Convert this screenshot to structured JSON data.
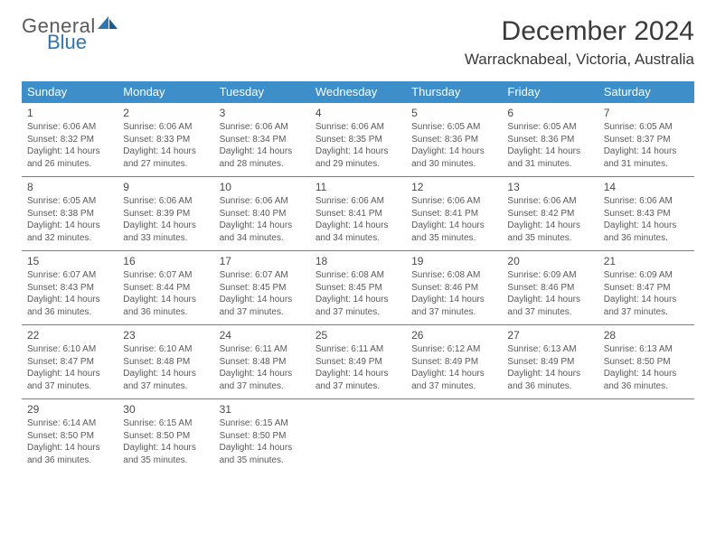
{
  "brand": {
    "general": "General",
    "blue": "Blue",
    "accent_color": "#2e75b6"
  },
  "title": {
    "month": "December 2024",
    "location": "Warracknabeal, Victoria, Australia"
  },
  "colors": {
    "header_bg": "#3d8ec9",
    "header_fg": "#ffffff",
    "cell_border": "#3d8ec9",
    "text": "#5a5a5a",
    "title_text": "#3a3a3a",
    "background": "#ffffff"
  },
  "typography": {
    "title_fontsize": 30,
    "location_fontsize": 17,
    "weekday_fontsize": 13,
    "daynum_fontsize": 12,
    "body_fontsize": 10,
    "logo_fontsize": 22
  },
  "weekdays": [
    "Sunday",
    "Monday",
    "Tuesday",
    "Wednesday",
    "Thursday",
    "Friday",
    "Saturday"
  ],
  "weeks": [
    [
      {
        "day": "1",
        "sunrise": "Sunrise: 6:06 AM",
        "sunset": "Sunset: 8:32 PM",
        "d1": "Daylight: 14 hours",
        "d2": "and 26 minutes."
      },
      {
        "day": "2",
        "sunrise": "Sunrise: 6:06 AM",
        "sunset": "Sunset: 8:33 PM",
        "d1": "Daylight: 14 hours",
        "d2": "and 27 minutes."
      },
      {
        "day": "3",
        "sunrise": "Sunrise: 6:06 AM",
        "sunset": "Sunset: 8:34 PM",
        "d1": "Daylight: 14 hours",
        "d2": "and 28 minutes."
      },
      {
        "day": "4",
        "sunrise": "Sunrise: 6:06 AM",
        "sunset": "Sunset: 8:35 PM",
        "d1": "Daylight: 14 hours",
        "d2": "and 29 minutes."
      },
      {
        "day": "5",
        "sunrise": "Sunrise: 6:05 AM",
        "sunset": "Sunset: 8:36 PM",
        "d1": "Daylight: 14 hours",
        "d2": "and 30 minutes."
      },
      {
        "day": "6",
        "sunrise": "Sunrise: 6:05 AM",
        "sunset": "Sunset: 8:36 PM",
        "d1": "Daylight: 14 hours",
        "d2": "and 31 minutes."
      },
      {
        "day": "7",
        "sunrise": "Sunrise: 6:05 AM",
        "sunset": "Sunset: 8:37 PM",
        "d1": "Daylight: 14 hours",
        "d2": "and 31 minutes."
      }
    ],
    [
      {
        "day": "8",
        "sunrise": "Sunrise: 6:05 AM",
        "sunset": "Sunset: 8:38 PM",
        "d1": "Daylight: 14 hours",
        "d2": "and 32 minutes."
      },
      {
        "day": "9",
        "sunrise": "Sunrise: 6:06 AM",
        "sunset": "Sunset: 8:39 PM",
        "d1": "Daylight: 14 hours",
        "d2": "and 33 minutes."
      },
      {
        "day": "10",
        "sunrise": "Sunrise: 6:06 AM",
        "sunset": "Sunset: 8:40 PM",
        "d1": "Daylight: 14 hours",
        "d2": "and 34 minutes."
      },
      {
        "day": "11",
        "sunrise": "Sunrise: 6:06 AM",
        "sunset": "Sunset: 8:41 PM",
        "d1": "Daylight: 14 hours",
        "d2": "and 34 minutes."
      },
      {
        "day": "12",
        "sunrise": "Sunrise: 6:06 AM",
        "sunset": "Sunset: 8:41 PM",
        "d1": "Daylight: 14 hours",
        "d2": "and 35 minutes."
      },
      {
        "day": "13",
        "sunrise": "Sunrise: 6:06 AM",
        "sunset": "Sunset: 8:42 PM",
        "d1": "Daylight: 14 hours",
        "d2": "and 35 minutes."
      },
      {
        "day": "14",
        "sunrise": "Sunrise: 6:06 AM",
        "sunset": "Sunset: 8:43 PM",
        "d1": "Daylight: 14 hours",
        "d2": "and 36 minutes."
      }
    ],
    [
      {
        "day": "15",
        "sunrise": "Sunrise: 6:07 AM",
        "sunset": "Sunset: 8:43 PM",
        "d1": "Daylight: 14 hours",
        "d2": "and 36 minutes."
      },
      {
        "day": "16",
        "sunrise": "Sunrise: 6:07 AM",
        "sunset": "Sunset: 8:44 PM",
        "d1": "Daylight: 14 hours",
        "d2": "and 36 minutes."
      },
      {
        "day": "17",
        "sunrise": "Sunrise: 6:07 AM",
        "sunset": "Sunset: 8:45 PM",
        "d1": "Daylight: 14 hours",
        "d2": "and 37 minutes."
      },
      {
        "day": "18",
        "sunrise": "Sunrise: 6:08 AM",
        "sunset": "Sunset: 8:45 PM",
        "d1": "Daylight: 14 hours",
        "d2": "and 37 minutes."
      },
      {
        "day": "19",
        "sunrise": "Sunrise: 6:08 AM",
        "sunset": "Sunset: 8:46 PM",
        "d1": "Daylight: 14 hours",
        "d2": "and 37 minutes."
      },
      {
        "day": "20",
        "sunrise": "Sunrise: 6:09 AM",
        "sunset": "Sunset: 8:46 PM",
        "d1": "Daylight: 14 hours",
        "d2": "and 37 minutes."
      },
      {
        "day": "21",
        "sunrise": "Sunrise: 6:09 AM",
        "sunset": "Sunset: 8:47 PM",
        "d1": "Daylight: 14 hours",
        "d2": "and 37 minutes."
      }
    ],
    [
      {
        "day": "22",
        "sunrise": "Sunrise: 6:10 AM",
        "sunset": "Sunset: 8:47 PM",
        "d1": "Daylight: 14 hours",
        "d2": "and 37 minutes."
      },
      {
        "day": "23",
        "sunrise": "Sunrise: 6:10 AM",
        "sunset": "Sunset: 8:48 PM",
        "d1": "Daylight: 14 hours",
        "d2": "and 37 minutes."
      },
      {
        "day": "24",
        "sunrise": "Sunrise: 6:11 AM",
        "sunset": "Sunset: 8:48 PM",
        "d1": "Daylight: 14 hours",
        "d2": "and 37 minutes."
      },
      {
        "day": "25",
        "sunrise": "Sunrise: 6:11 AM",
        "sunset": "Sunset: 8:49 PM",
        "d1": "Daylight: 14 hours",
        "d2": "and 37 minutes."
      },
      {
        "day": "26",
        "sunrise": "Sunrise: 6:12 AM",
        "sunset": "Sunset: 8:49 PM",
        "d1": "Daylight: 14 hours",
        "d2": "and 37 minutes."
      },
      {
        "day": "27",
        "sunrise": "Sunrise: 6:13 AM",
        "sunset": "Sunset: 8:49 PM",
        "d1": "Daylight: 14 hours",
        "d2": "and 36 minutes."
      },
      {
        "day": "28",
        "sunrise": "Sunrise: 6:13 AM",
        "sunset": "Sunset: 8:50 PM",
        "d1": "Daylight: 14 hours",
        "d2": "and 36 minutes."
      }
    ],
    [
      {
        "day": "29",
        "sunrise": "Sunrise: 6:14 AM",
        "sunset": "Sunset: 8:50 PM",
        "d1": "Daylight: 14 hours",
        "d2": "and 36 minutes."
      },
      {
        "day": "30",
        "sunrise": "Sunrise: 6:15 AM",
        "sunset": "Sunset: 8:50 PM",
        "d1": "Daylight: 14 hours",
        "d2": "and 35 minutes."
      },
      {
        "day": "31",
        "sunrise": "Sunrise: 6:15 AM",
        "sunset": "Sunset: 8:50 PM",
        "d1": "Daylight: 14 hours",
        "d2": "and 35 minutes."
      },
      {},
      {},
      {},
      {}
    ]
  ]
}
